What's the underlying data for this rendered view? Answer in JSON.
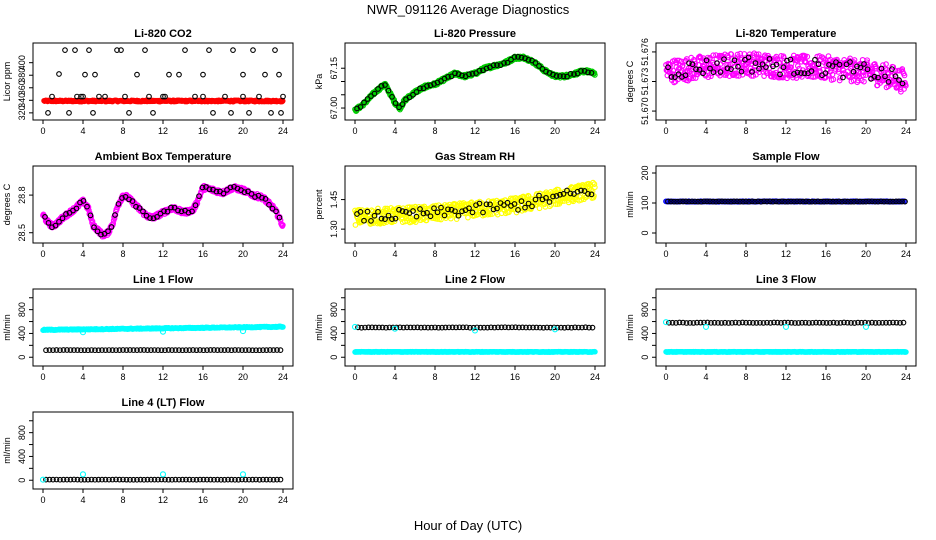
{
  "figure": {
    "title": "NWR_091126  Average Diagnostics",
    "xlabel": "Hour of Day (UTC)"
  },
  "colors": {
    "red": "#ff0000",
    "green": "#00cc00",
    "magenta": "#ff00ff",
    "yellow": "#ffff00",
    "cyan": "#00ffff",
    "blue": "#0000ff",
    "black": "#000000"
  },
  "chart_data": [
    {
      "id": "co2",
      "type": "scatter",
      "title": "Li-820 CO2",
      "ylabel": "Licor ppm",
      "xlim": [
        0,
        24
      ],
      "xticks": [
        0,
        4,
        8,
        12,
        16,
        20,
        24
      ],
      "ylim": [
        315,
        425
      ],
      "yticks": [
        320,
        340,
        360,
        380,
        400
      ],
      "series": [
        {
          "name": "dense",
          "color": "red",
          "filled": true,
          "dense": true,
          "x_start": 0.1,
          "x_end": 24,
          "y_base": 339,
          "noise": 1.2
        },
        {
          "name": "outliers",
          "color": "black",
          "points": [
            [
              0.5,
              320
            ],
            [
              0.9,
              346
            ],
            [
              2.2,
              420
            ],
            [
              1.6,
              382
            ],
            [
              2.6,
              320
            ],
            [
              3.2,
              420
            ],
            [
              3.4,
              346
            ],
            [
              3.8,
              346
            ],
            [
              4.2,
              381
            ],
            [
              4.6,
              420
            ],
            [
              5.0,
              320
            ],
            [
              5.2,
              381
            ],
            [
              5.6,
              346
            ],
            [
              6.2,
              346
            ],
            [
              7.4,
              420
            ],
            [
              7.8,
              420
            ],
            [
              8.2,
              346
            ],
            [
              8.6,
              320
            ],
            [
              9.4,
              381
            ],
            [
              10.2,
              420
            ],
            [
              10.6,
              346
            ],
            [
              11.0,
              320
            ],
            [
              12.2,
              346
            ],
            [
              12.6,
              381
            ],
            [
              13.6,
              381
            ],
            [
              14.2,
              420
            ],
            [
              15.2,
              346
            ],
            [
              16.0,
              381
            ],
            [
              16.6,
              420
            ],
            [
              17.0,
              320
            ],
            [
              18.2,
              346
            ],
            [
              18.8,
              320
            ],
            [
              19.0,
              420
            ],
            [
              20.0,
              381
            ],
            [
              20.6,
              320
            ],
            [
              21.0,
              420
            ],
            [
              21.6,
              346
            ],
            [
              22.2,
              381
            ],
            [
              22.8,
              320
            ],
            [
              23.2,
              420
            ],
            [
              23.6,
              381
            ],
            [
              24.0,
              346
            ],
            [
              23.8,
              320
            ],
            [
              4.0,
              346
            ],
            [
              12.0,
              346
            ],
            [
              16.0,
              346
            ],
            [
              20.0,
              346
            ]
          ]
        }
      ]
    },
    {
      "id": "pressure",
      "type": "scatter",
      "title": "Li-820 Pressure",
      "ylabel": "kPa",
      "xlim": [
        0,
        24
      ],
      "xticks": [
        0,
        4,
        8,
        12,
        16,
        20,
        24
      ],
      "ylim": [
        66.97,
        67.23
      ],
      "yticks": [
        67.0,
        67.05,
        67.1,
        67.15
      ],
      "ytick_labels": [
        "67.00",
        "",
        "",
        "67.15"
      ],
      "series": [
        {
          "name": "points",
          "color": "green",
          "black_color": "black",
          "mixed": true,
          "curve": [
            [
              0,
              66.99
            ],
            [
              1,
              67.02
            ],
            [
              2,
              67.06
            ],
            [
              3,
              67.09
            ],
            [
              4,
              67.02
            ],
            [
              4.5,
              67.0
            ],
            [
              5,
              67.03
            ],
            [
              6,
              67.06
            ],
            [
              7,
              67.08
            ],
            [
              8,
              67.09
            ],
            [
              9,
              67.11
            ],
            [
              10,
              67.13
            ],
            [
              11,
              67.12
            ],
            [
              12,
              67.13
            ],
            [
              13,
              67.15
            ],
            [
              14,
              67.16
            ],
            [
              15,
              67.17
            ],
            [
              16,
              67.19
            ],
            [
              17,
              67.19
            ],
            [
              18,
              67.17
            ],
            [
              19,
              67.14
            ],
            [
              20,
              67.12
            ],
            [
              21,
              67.12
            ],
            [
              22,
              67.13
            ],
            [
              23,
              67.14
            ],
            [
              24,
              67.13
            ]
          ],
          "noise": 0.006
        }
      ]
    },
    {
      "id": "licor_temp",
      "type": "scatter",
      "title": "Li-820 Temperature",
      "ylabel": "degrees C",
      "xlim": [
        0,
        24
      ],
      "xticks": [
        0,
        4,
        8,
        12,
        16,
        20,
        24
      ],
      "ylim": [
        51.6695,
        51.6765
      ],
      "yticks": [
        51.67,
        51.673,
        51.676
      ],
      "ytick_labels": [
        "51.670",
        "51.673",
        "51.676"
      ],
      "series": [
        {
          "name": "points",
          "color": "magenta",
          "black_color": "black",
          "mixed": true,
          "curve": [
            [
              0,
              51.674
            ],
            [
              4,
              51.6745
            ],
            [
              8,
              51.6748
            ],
            [
              12,
              51.6745
            ],
            [
              16,
              51.6744
            ],
            [
              20,
              51.674
            ],
            [
              22,
              51.6736
            ],
            [
              24,
              51.673
            ]
          ],
          "noise": 0.0012
        }
      ]
    },
    {
      "id": "box_temp",
      "type": "scatter",
      "title": "Ambient Box Temperature",
      "ylabel": "degrees C",
      "xlim": [
        0,
        24
      ],
      "xticks": [
        0,
        4,
        8,
        12,
        16,
        20,
        24
      ],
      "ylim": [
        28.45,
        29.0
      ],
      "yticks": [
        28.5,
        28.8
      ],
      "ytick_labels": [
        "28.5",
        "28.8"
      ],
      "series": [
        {
          "name": "points",
          "color": "magenta",
          "black_color": "black",
          "mixed": true,
          "curve": [
            [
              0,
              28.64
            ],
            [
              0.5,
              28.58
            ],
            [
              1,
              28.55
            ],
            [
              2,
              28.62
            ],
            [
              3,
              28.68
            ],
            [
              4,
              28.75
            ],
            [
              4.5,
              28.7
            ],
            [
              5,
              28.56
            ],
            [
              5.5,
              28.52
            ],
            [
              6,
              28.48
            ],
            [
              6.5,
              28.5
            ],
            [
              7,
              28.58
            ],
            [
              7.5,
              28.72
            ],
            [
              8,
              28.8
            ],
            [
              8.5,
              28.78
            ],
            [
              9,
              28.74
            ],
            [
              10,
              28.66
            ],
            [
              10.5,
              28.63
            ],
            [
              11,
              28.62
            ],
            [
              12,
              28.66
            ],
            [
              13,
              28.7
            ],
            [
              14,
              28.66
            ],
            [
              15,
              28.68
            ],
            [
              15.5,
              28.76
            ],
            [
              16,
              28.86
            ],
            [
              17,
              28.84
            ],
            [
              18,
              28.82
            ],
            [
              19,
              28.86
            ],
            [
              20,
              28.84
            ],
            [
              21,
              28.8
            ],
            [
              22,
              28.78
            ],
            [
              23,
              28.7
            ],
            [
              23.5,
              28.64
            ],
            [
              24,
              28.55
            ]
          ],
          "noise": 0.018
        }
      ]
    },
    {
      "id": "gas_rh",
      "type": "scatter",
      "title": "Gas Stream RH",
      "ylabel": "percent",
      "xlim": [
        0,
        24
      ],
      "xticks": [
        0,
        4,
        8,
        12,
        16,
        20,
        24
      ],
      "ylim": [
        1.25,
        1.6
      ],
      "yticks": [
        1.3,
        1.45
      ],
      "ytick_labels": [
        "1.30",
        "1.45"
      ],
      "series": [
        {
          "name": "points",
          "color": "yellow",
          "black_color": "black",
          "mixed": true,
          "curve": [
            [
              0,
              1.36
            ],
            [
              4,
              1.37
            ],
            [
              8,
              1.38
            ],
            [
              12,
              1.4
            ],
            [
              16,
              1.42
            ],
            [
              20,
              1.46
            ],
            [
              24,
              1.5
            ]
          ],
          "noise": 0.04
        }
      ]
    },
    {
      "id": "sample_flow",
      "type": "scatter",
      "title": "Sample Flow",
      "ylabel": "ml/min",
      "xlim": [
        0,
        24
      ],
      "xticks": [
        0,
        4,
        8,
        12,
        16,
        20,
        24
      ],
      "ylim": [
        -20,
        210
      ],
      "yticks": [
        0,
        100,
        200
      ],
      "series": [
        {
          "name": "flow",
          "color": "blue",
          "black_color": "black",
          "mixed": true,
          "flat": true,
          "curve": [
            [
              0,
              105
            ],
            [
              24,
              105
            ]
          ],
          "noise": 1
        }
      ]
    },
    {
      "id": "line1",
      "type": "scatter",
      "title": "Line 1 Flow",
      "ylabel": "ml/min",
      "xlim": [
        0,
        24
      ],
      "xticks": [
        0,
        4,
        8,
        12,
        16,
        20,
        24
      ],
      "ylim": [
        -80,
        1080
      ],
      "yticks": [
        0,
        200,
        400,
        600,
        800,
        1000
      ],
      "ytick_labels": [
        "0",
        "",
        "400",
        "",
        "800",
        ""
      ],
      "series": [
        {
          "name": "cyan",
          "color": "cyan",
          "filled": true,
          "dense": true,
          "x_start": 0,
          "x_end": 24,
          "y_base": 460,
          "y_slope": 2.2,
          "noise": 8
        },
        {
          "name": "black",
          "color": "black",
          "flat": true,
          "curve": [
            [
              0,
              120
            ],
            [
              24,
              120
            ]
          ],
          "noise": 2,
          "step": 0.35
        }
      ],
      "outliers": {
        "color": "cyan",
        "points": [
          [
            4,
            420
          ],
          [
            12,
            430
          ],
          [
            20,
            440
          ]
        ]
      }
    },
    {
      "id": "line2",
      "type": "scatter",
      "title": "Line 2 Flow",
      "ylabel": "ml/min",
      "xlim": [
        0,
        24
      ],
      "xticks": [
        0,
        4,
        8,
        12,
        16,
        20,
        24
      ],
      "ylim": [
        -80,
        1080
      ],
      "yticks": [
        0,
        200,
        400,
        600,
        800,
        1000
      ],
      "ytick_labels": [
        "0",
        "",
        "400",
        "",
        "800",
        ""
      ],
      "series": [
        {
          "name": "cyan",
          "color": "cyan",
          "filled": true,
          "dense": true,
          "x_start": 0,
          "x_end": 24,
          "y_base": 90,
          "y_slope": 0,
          "noise": 4
        },
        {
          "name": "black",
          "color": "black",
          "flat": true,
          "curve": [
            [
              0,
              500
            ],
            [
              24,
              500
            ]
          ],
          "noise": 4,
          "step": 0.35
        }
      ],
      "outliers": {
        "color": "cyan",
        "points": [
          [
            0,
            510
          ],
          [
            4,
            480
          ],
          [
            12,
            450
          ],
          [
            20,
            470
          ]
        ]
      }
    },
    {
      "id": "line3",
      "type": "scatter",
      "title": "Line 3 Flow",
      "ylabel": "ml/min",
      "xlim": [
        0,
        24
      ],
      "xticks": [
        0,
        4,
        8,
        12,
        16,
        20,
        24
      ],
      "ylim": [
        -80,
        1080
      ],
      "yticks": [
        0,
        200,
        400,
        600,
        800,
        1000
      ],
      "ytick_labels": [
        "0",
        "",
        "400",
        "",
        "800",
        ""
      ],
      "series": [
        {
          "name": "cyan",
          "color": "cyan",
          "filled": true,
          "dense": true,
          "x_start": 0,
          "x_end": 24,
          "y_base": 90,
          "y_slope": 0,
          "noise": 4
        },
        {
          "name": "black",
          "color": "black",
          "flat": true,
          "curve": [
            [
              0,
              580
            ],
            [
              24,
              580
            ]
          ],
          "noise": 4,
          "step": 0.35
        }
      ],
      "outliers": {
        "color": "cyan",
        "points": [
          [
            0,
            590
          ],
          [
            4,
            510
          ],
          [
            12,
            510
          ],
          [
            20,
            510
          ]
        ]
      }
    },
    {
      "id": "line4",
      "type": "scatter",
      "title": "Line 4 (LT) Flow",
      "ylabel": "ml/min",
      "xlim": [
        0,
        24
      ],
      "xticks": [
        0,
        4,
        8,
        12,
        16,
        20,
        24
      ],
      "ylim": [
        -80,
        1080
      ],
      "yticks": [
        0,
        200,
        400,
        600,
        800,
        1000
      ],
      "ytick_labels": [
        "0",
        "",
        "400",
        "",
        "800",
        ""
      ],
      "series": [
        {
          "name": "black",
          "color": "black",
          "flat": true,
          "curve": [
            [
              0,
              10
            ],
            [
              24,
              10
            ]
          ],
          "noise": 2,
          "step": 0.35
        }
      ],
      "outliers": {
        "color": "cyan",
        "points": [
          [
            0,
            10
          ],
          [
            4,
            100
          ],
          [
            12,
            100
          ],
          [
            20,
            100
          ]
        ]
      }
    }
  ]
}
